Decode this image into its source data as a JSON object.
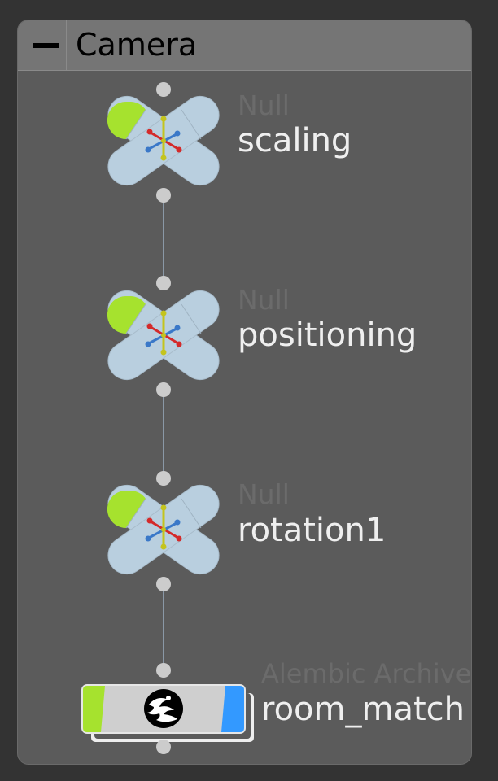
{
  "network_box": {
    "title": "Camera",
    "collapse_icon": "minus-icon"
  },
  "nodes": [
    {
      "type_label": "Null",
      "name": "scaling",
      "icon": "null-axis-icon"
    },
    {
      "type_label": "Null",
      "name": "positioning",
      "icon": "null-axis-icon"
    },
    {
      "type_label": "Null",
      "name": "rotation1",
      "icon": "null-axis-icon"
    },
    {
      "type_label": "Alembic Archive",
      "name": "room_match",
      "icon": "alembic-icon"
    }
  ],
  "colors": {
    "background": "#333333",
    "box_body": "#5b5b5b",
    "box_header": "#757575",
    "node_body": "#b9cfdf",
    "node_flag_green": "#a6e22e",
    "alembic_flag_blue": "#3399ff",
    "connector": "#cccccc",
    "wire": "#8a98a6",
    "type_label": "#6b6b6b",
    "name_label": "#efefef"
  }
}
